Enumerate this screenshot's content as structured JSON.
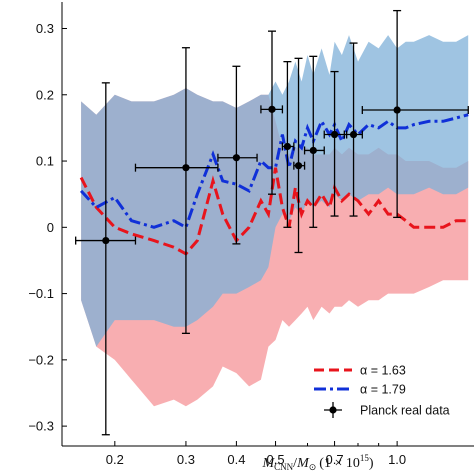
{
  "chart_data": {
    "type": "line",
    "xlabel": "M_CNN/M_⊙ (1 × 10^15)",
    "xlabel_parts": {
      "m": "M",
      "cnn": "CNN",
      "slash": "/",
      "sun": "M",
      "sun_sub": "⊙",
      "paren": "(1 × 10",
      "exp": "15",
      "close": ")"
    },
    "ylabel": "",
    "x_scale": "log",
    "xlim": [
      0.148,
      1.55
    ],
    "ylim": [
      -0.33,
      0.34
    ],
    "x_ticks": [
      {
        "value": 0.2,
        "label": "0.2"
      },
      {
        "value": 0.3,
        "label": "0.3"
      },
      {
        "value": 0.4,
        "label": "0.4"
      },
      {
        "value": 0.5,
        "label": "0.5"
      },
      {
        "value": 0.7,
        "label": "0.7"
      },
      {
        "value": 1.0,
        "label": "1.0"
      }
    ],
    "y_ticks": [
      {
        "value": 0.3,
        "label": "0.3"
      },
      {
        "value": 0.2,
        "label": "0.2"
      },
      {
        "value": 0.1,
        "label": "0.1"
      },
      {
        "value": 0.0,
        "label": "0"
      },
      {
        "value": -0.1,
        "label": "−0.1"
      },
      {
        "value": -0.2,
        "label": "−0.2"
      },
      {
        "value": -0.3,
        "label": "−0.3"
      }
    ],
    "grid": false,
    "legend_position": "bottom-right",
    "series": [
      {
        "name": "α = 1.63",
        "color": "#e8141c",
        "style": "dashed",
        "band_color": "#f7a5a8",
        "x": [
          0.165,
          0.18,
          0.2,
          0.22,
          0.25,
          0.28,
          0.3,
          0.32,
          0.35,
          0.37,
          0.4,
          0.43,
          0.46,
          0.48,
          0.5,
          0.52,
          0.54,
          0.56,
          0.58,
          0.6,
          0.62,
          0.65,
          0.68,
          0.7,
          0.73,
          0.76,
          0.8,
          0.85,
          0.9,
          0.95,
          1.0,
          1.05,
          1.1,
          1.2,
          1.3,
          1.4,
          1.5
        ],
        "y": [
          0.075,
          0.03,
          0.0,
          -0.01,
          -0.02,
          -0.03,
          -0.04,
          -0.02,
          0.07,
          0.02,
          -0.02,
          0.0,
          0.04,
          0.02,
          0.09,
          0.03,
          0.0,
          0.06,
          0.02,
          0.04,
          0.03,
          0.05,
          0.03,
          0.06,
          0.04,
          0.05,
          0.04,
          0.02,
          0.04,
          0.02,
          0.02,
          0.01,
          0.0,
          0.0,
          0.0,
          0.01,
          0.01
        ],
        "band_upper": [
          0.19,
          0.17,
          0.2,
          0.19,
          0.19,
          0.2,
          0.21,
          0.2,
          0.19,
          0.19,
          0.18,
          0.19,
          0.2,
          0.2,
          0.16,
          0.12,
          0.11,
          0.12,
          0.12,
          0.12,
          0.11,
          0.11,
          0.11,
          0.12,
          0.11,
          0.12,
          0.11,
          0.11,
          0.12,
          0.11,
          0.11,
          0.1,
          0.1,
          0.1,
          0.09,
          0.09,
          0.1
        ],
        "band_lower": [
          -0.11,
          -0.18,
          -0.2,
          -0.23,
          -0.27,
          -0.26,
          -0.27,
          -0.26,
          -0.24,
          -0.21,
          -0.22,
          -0.24,
          -0.23,
          -0.18,
          -0.17,
          -0.14,
          -0.15,
          -0.14,
          -0.13,
          -0.12,
          -0.14,
          -0.12,
          -0.13,
          -0.12,
          -0.12,
          -0.11,
          -0.12,
          -0.11,
          -0.11,
          -0.1,
          -0.1,
          -0.1,
          -0.1,
          -0.09,
          -0.08,
          -0.08,
          -0.08
        ]
      },
      {
        "name": "α = 1.79",
        "color": "#1030d8",
        "style": "dashdot",
        "band_color": "#7fb0d8",
        "x": [
          0.165,
          0.18,
          0.2,
          0.22,
          0.25,
          0.28,
          0.3,
          0.32,
          0.35,
          0.37,
          0.4,
          0.43,
          0.46,
          0.48,
          0.5,
          0.52,
          0.54,
          0.56,
          0.58,
          0.6,
          0.62,
          0.65,
          0.68,
          0.7,
          0.73,
          0.76,
          0.8,
          0.85,
          0.9,
          0.95,
          1.0,
          1.05,
          1.1,
          1.2,
          1.3,
          1.4,
          1.5
        ],
        "y": [
          0.055,
          0.03,
          0.045,
          0.01,
          0.0,
          0.01,
          0.0,
          0.05,
          0.11,
          0.07,
          0.065,
          0.055,
          0.1,
          0.09,
          0.09,
          0.14,
          0.09,
          0.13,
          0.12,
          0.15,
          0.13,
          0.16,
          0.14,
          0.155,
          0.13,
          0.155,
          0.14,
          0.155,
          0.15,
          0.16,
          0.15,
          0.15,
          0.155,
          0.16,
          0.16,
          0.165,
          0.17
        ],
        "band_upper": [
          0.19,
          0.17,
          0.2,
          0.19,
          0.19,
          0.2,
          0.21,
          0.2,
          0.19,
          0.19,
          0.18,
          0.19,
          0.2,
          0.2,
          0.22,
          0.2,
          0.22,
          0.25,
          0.22,
          0.26,
          0.23,
          0.27,
          0.23,
          0.28,
          0.26,
          0.29,
          0.25,
          0.28,
          0.27,
          0.29,
          0.27,
          0.28,
          0.28,
          0.29,
          0.28,
          0.28,
          0.29
        ],
        "band_lower": [
          -0.11,
          -0.18,
          -0.14,
          -0.14,
          -0.14,
          -0.15,
          -0.15,
          -0.14,
          -0.12,
          -0.1,
          -0.1,
          -0.09,
          -0.08,
          -0.06,
          0.0,
          0.02,
          0.01,
          0.03,
          0.02,
          0.04,
          0.03,
          0.04,
          0.03,
          0.05,
          0.04,
          0.05,
          0.04,
          0.05,
          0.05,
          0.06,
          0.05,
          0.05,
          0.05,
          0.06,
          0.05,
          0.05,
          0.06
        ]
      }
    ],
    "points": {
      "name": "Planck real data",
      "color": "#000000",
      "data": [
        {
          "x": 0.19,
          "y": -0.02,
          "xlo": 0.16,
          "xhi": 0.225,
          "ylo": -0.313,
          "yhi": 0.218
        },
        {
          "x": 0.3,
          "y": 0.09,
          "xlo": 0.225,
          "xhi": 0.36,
          "ylo": -0.16,
          "yhi": 0.271
        },
        {
          "x": 0.4,
          "y": 0.105,
          "xlo": 0.36,
          "xhi": 0.45,
          "ylo": -0.025,
          "yhi": 0.243
        },
        {
          "x": 0.49,
          "y": 0.178,
          "xlo": 0.46,
          "xhi": 0.52,
          "ylo": 0.05,
          "yhi": 0.296
        },
        {
          "x": 0.535,
          "y": 0.122,
          "xlo": 0.52,
          "xhi": 0.555,
          "ylo": 0.0,
          "yhi": 0.25
        },
        {
          "x": 0.57,
          "y": 0.093,
          "xlo": 0.555,
          "xhi": 0.59,
          "ylo": -0.038,
          "yhi": 0.255
        },
        {
          "x": 0.62,
          "y": 0.116,
          "xlo": 0.59,
          "xhi": 0.66,
          "ylo": 0.0,
          "yhi": 0.258
        },
        {
          "x": 0.7,
          "y": 0.14,
          "xlo": 0.66,
          "xhi": 0.75,
          "ylo": 0.017,
          "yhi": 0.235
        },
        {
          "x": 0.78,
          "y": 0.14,
          "xlo": 0.74,
          "xhi": 0.82,
          "ylo": 0.017,
          "yhi": 0.278
        },
        {
          "x": 1.0,
          "y": 0.177,
          "xlo": 0.82,
          "xhi": 1.5,
          "ylo": 0.015,
          "yhi": 0.327
        }
      ]
    }
  }
}
